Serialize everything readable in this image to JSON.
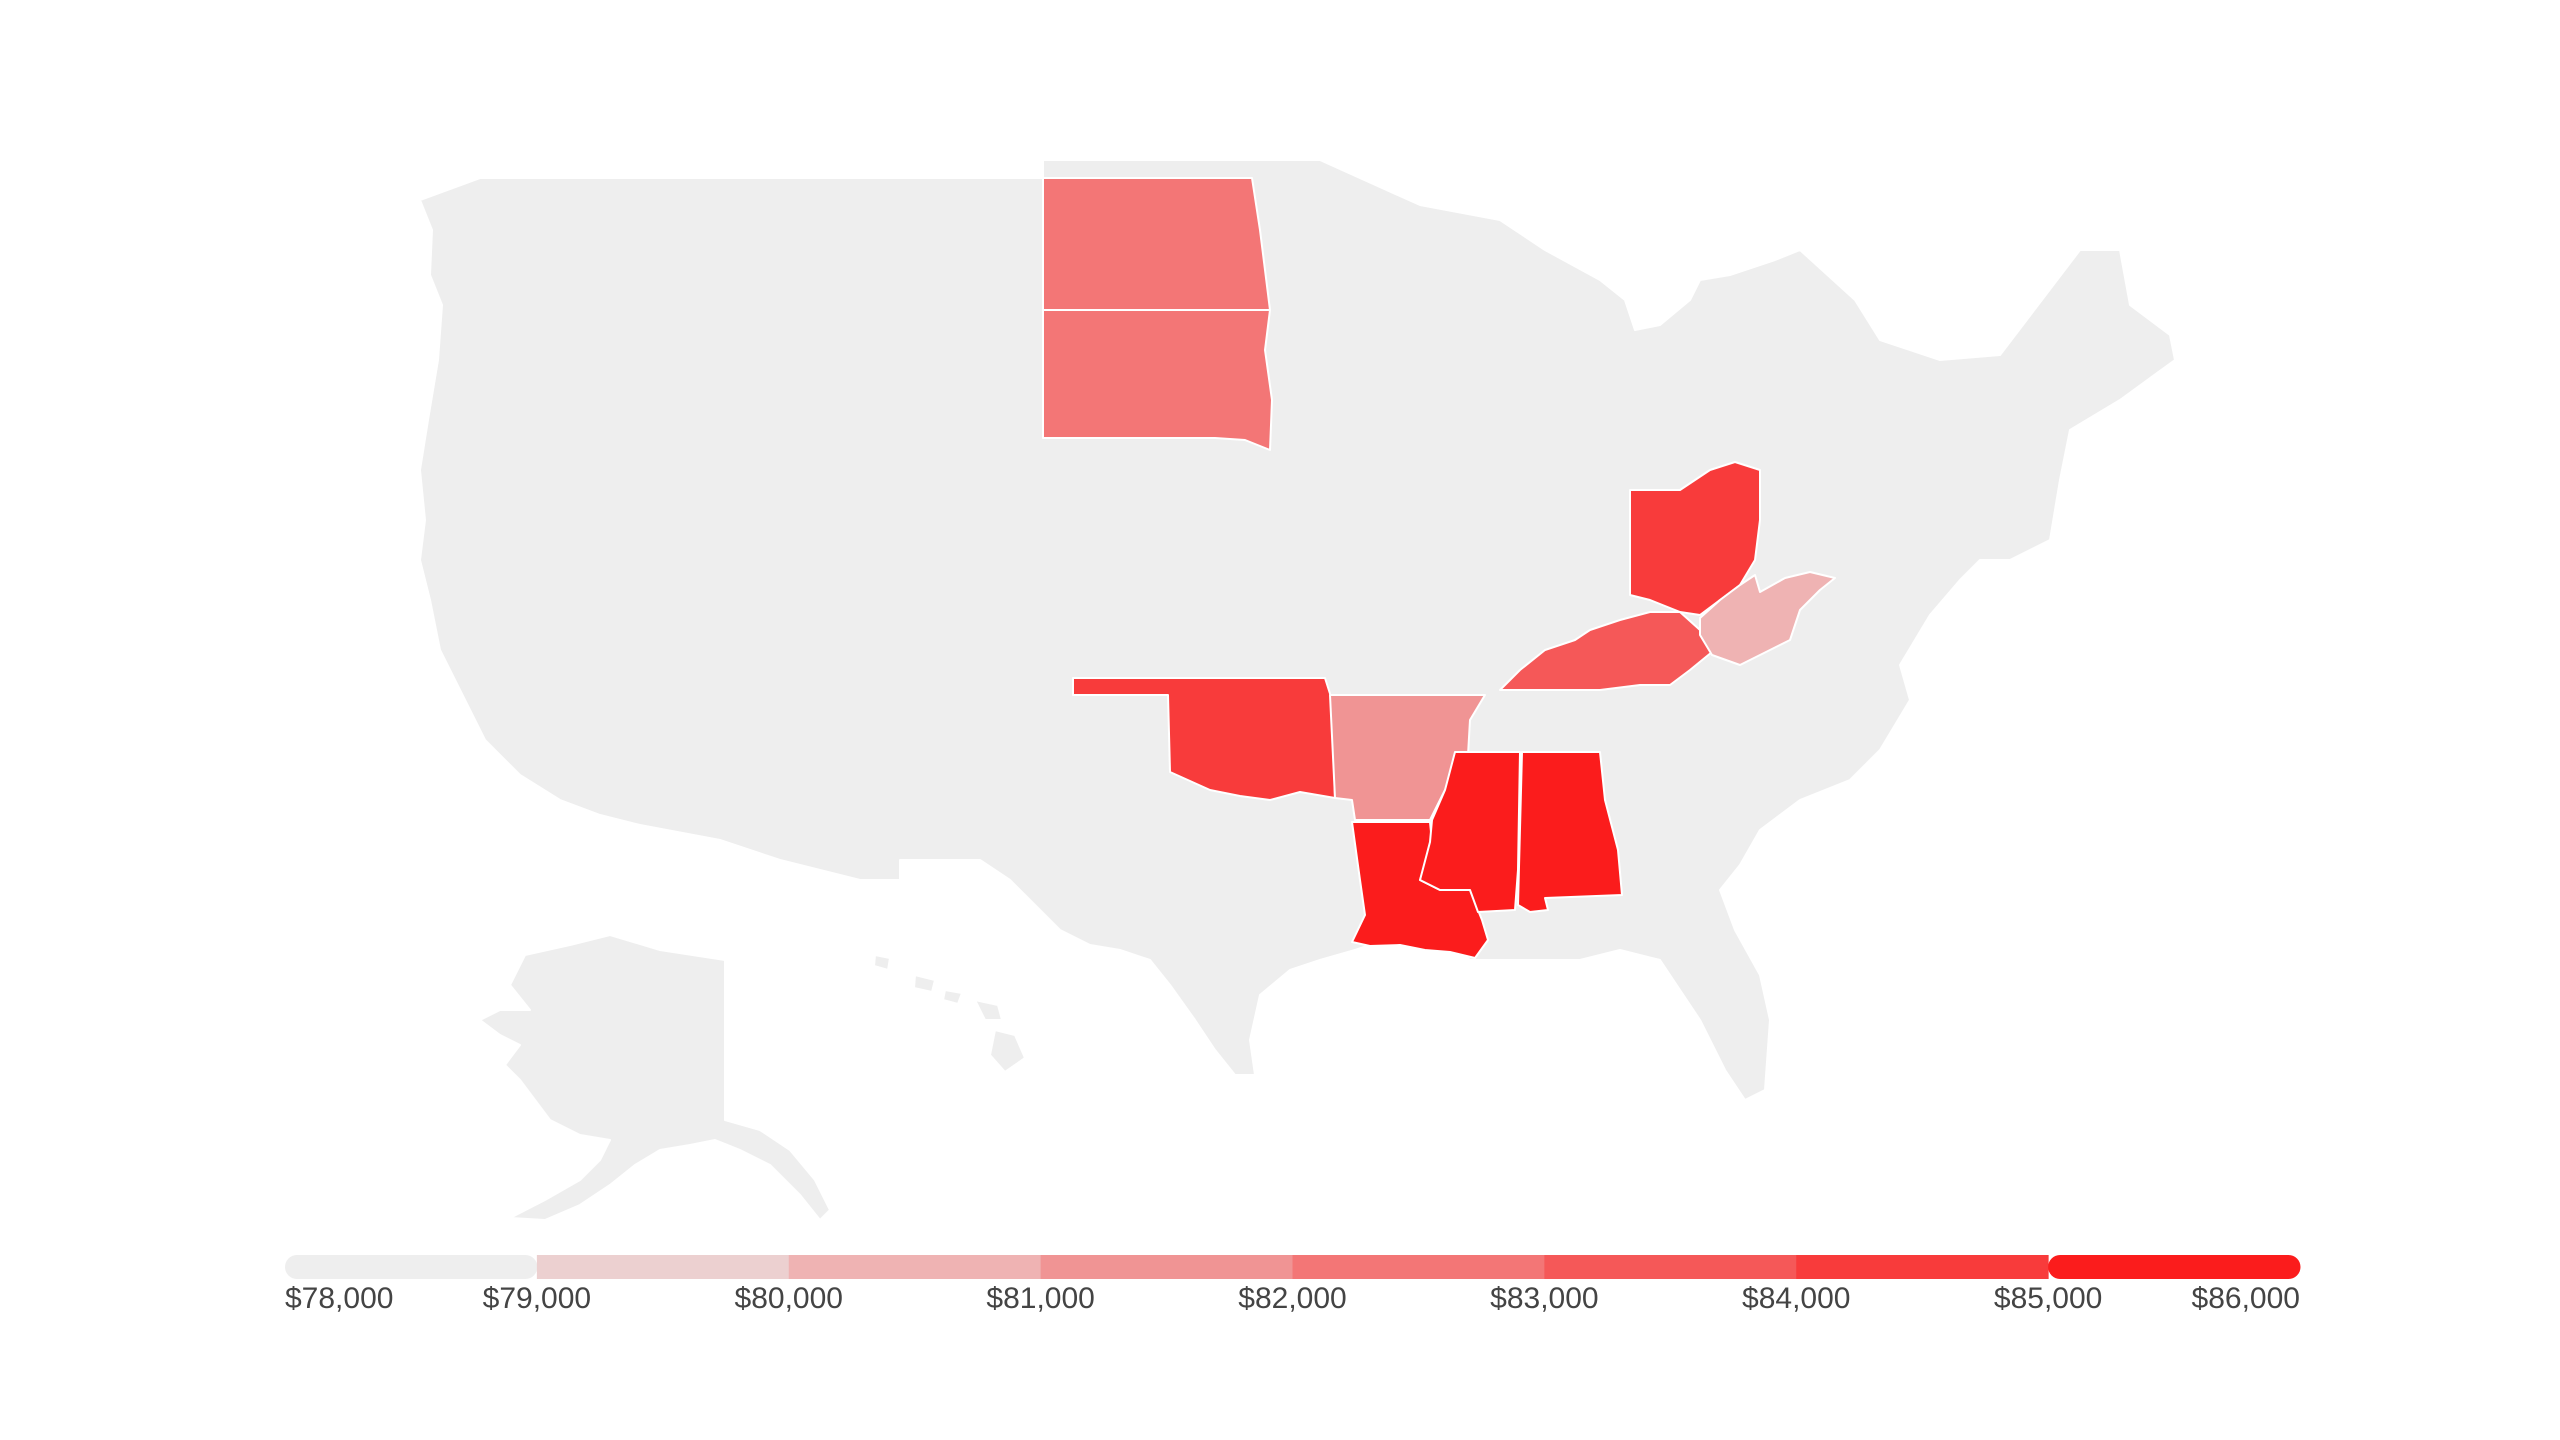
{
  "map": {
    "type": "choropleth",
    "region": "United States",
    "colors": {
      "no_data": "#eeeeee",
      "scale": [
        "#eeeeee",
        "#ecd0d0",
        "#efb3b3",
        "#f09494",
        "#f37676",
        "#f55858",
        "#f83b3b",
        "#fb1c1c"
      ]
    },
    "highlighted_states": [
      {
        "state": "North Dakota",
        "color": "#f37676"
      },
      {
        "state": "South Dakota",
        "color": "#f37676"
      },
      {
        "state": "Oklahoma",
        "color": "#f83b3b"
      },
      {
        "state": "Arkansas",
        "color": "#f09494"
      },
      {
        "state": "Louisiana",
        "color": "#fb1c1c"
      },
      {
        "state": "Mississippi",
        "color": "#fb1c1c"
      },
      {
        "state": "Alabama",
        "color": "#fb1c1c"
      },
      {
        "state": "Kentucky",
        "color": "#f55858"
      },
      {
        "state": "Ohio",
        "color": "#f83b3b"
      },
      {
        "state": "West Virginia",
        "color": "#efb3b3"
      }
    ]
  },
  "legend": {
    "labels": [
      "$78,000",
      "$79,000",
      "$80,000",
      "$81,000",
      "$82,000",
      "$83,000",
      "$84,000",
      "$85,000",
      "$86,000"
    ],
    "colors": [
      "#eeeeee",
      "#ecd0d0",
      "#efb3b3",
      "#f09494",
      "#f37676",
      "#f55858",
      "#f83b3b",
      "#fb1c1c"
    ]
  }
}
